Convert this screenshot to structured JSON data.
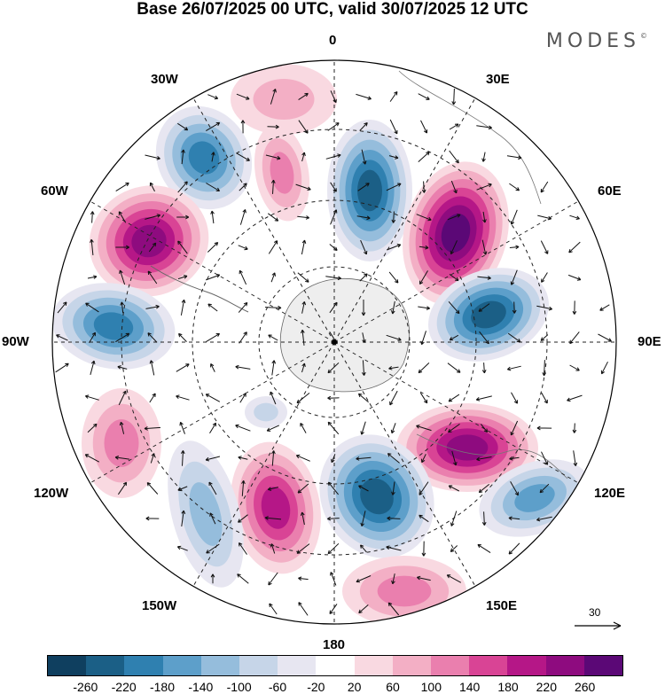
{
  "title": "Base 26/07/2025 00 UTC, valid 30/07/2025 12 UTC",
  "brand": "MODES",
  "brand_mark": "©",
  "longitude_labels": [
    "0",
    "30E",
    "60E",
    "90E",
    "120E",
    "150E",
    "180",
    "150W",
    "120W",
    "90W",
    "60W",
    "30W"
  ],
  "reference_vector_label": "30",
  "colorbar": {
    "colors": [
      "#0f3f5f",
      "#1b5f86",
      "#2f80b0",
      "#5d9fca",
      "#95bddc",
      "#c6d5e8",
      "#e7e6f1",
      "#ffffff",
      "#f9d9e1",
      "#f3afc5",
      "#ea7fae",
      "#d94495",
      "#b51787",
      "#8e0b7f",
      "#5b0876"
    ],
    "tick_labels": [
      "-260",
      "-220",
      "-180",
      "-140",
      "-100",
      "-60",
      "-20",
      "20",
      "60",
      "100",
      "140",
      "180",
      "220",
      "260"
    ]
  }
}
